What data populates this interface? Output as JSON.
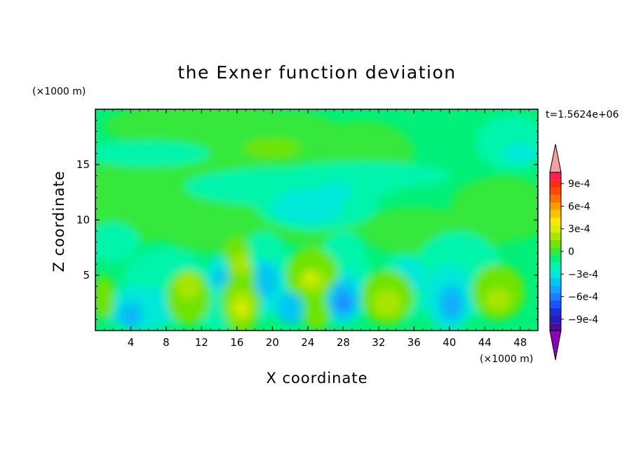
{
  "chart_data": {
    "type": "heatmap",
    "title": "the Exner function deviation",
    "xlabel": "X coordinate",
    "ylabel": "Z coordinate",
    "x_unit": "(×1000 m)",
    "y_unit": "(×1000 m)",
    "time_label": "t=1.5624e+06",
    "xlim": [
      0,
      50
    ],
    "ylim": [
      0,
      20
    ],
    "x_ticks": [
      4,
      8,
      12,
      16,
      20,
      24,
      28,
      32,
      36,
      40,
      44,
      48
    ],
    "y_ticks": [
      5,
      10,
      15
    ],
    "x_tick_labels": [
      "4",
      "8",
      "12",
      "16",
      "20",
      "24",
      "28",
      "32",
      "36",
      "40",
      "44",
      "48"
    ],
    "y_tick_labels": [
      "5",
      "10",
      "15"
    ],
    "colorbar": {
      "levels": [
        -0.0011,
        -0.001,
        -0.0009,
        -0.0008,
        -0.0007,
        -0.0006,
        -0.0005,
        -0.0004,
        -0.0003,
        -0.0002,
        -0.0001,
        0,
        0.0001,
        0.0002,
        0.0003,
        0.0004,
        0.0005,
        0.0006,
        0.0007,
        0.0008,
        0.0009,
        0.001,
        0.0011
      ],
      "colors": [
        "#8b00b8",
        "#4b0c9c",
        "#2a1ab8",
        "#1c2fdd",
        "#1455ff",
        "#1b7dff",
        "#12a5ff",
        "#00c8f0",
        "#00e8d8",
        "#00f4ab",
        "#00f07a",
        "#35e83a",
        "#6ee400",
        "#a8e600",
        "#d8ee00",
        "#ffe800",
        "#ffc000",
        "#ff9a00",
        "#ff7000",
        "#ff4a00",
        "#ff2a10",
        "#ff1e4a",
        "#f5a0a0"
      ],
      "tick_values": [
        0.0009,
        0.0006,
        0.0003,
        0,
        -0.0003,
        -0.0006,
        -0.0009
      ],
      "tick_labels": [
        "9e-4",
        "6e-4",
        "3e-4",
        "0",
        "−3e-4",
        "−6e-4",
        "−9e-4"
      ]
    }
  }
}
